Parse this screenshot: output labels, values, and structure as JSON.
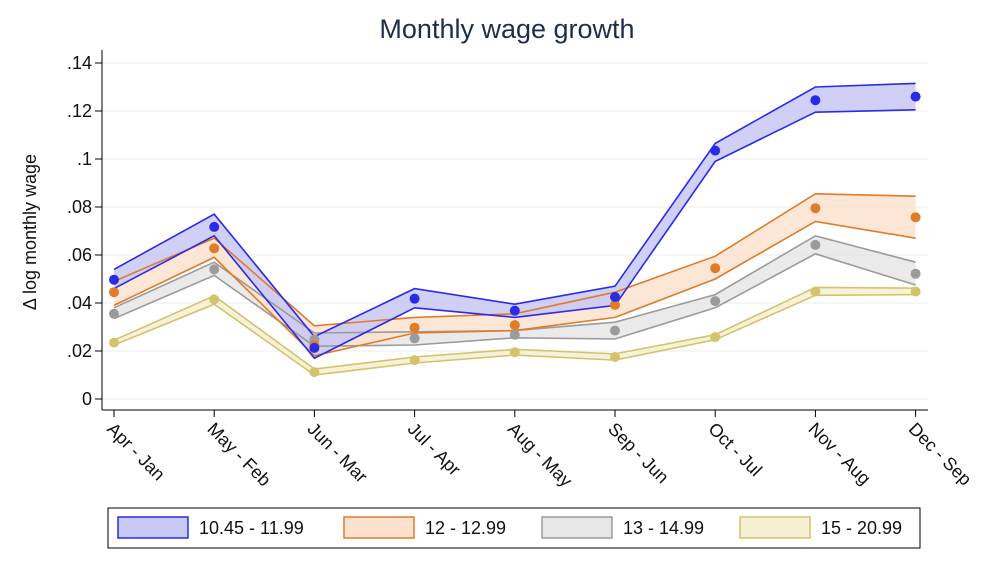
{
  "chart_data": {
    "type": "line",
    "title": "Monthly wage growth",
    "ylabel": "Δ log monthly wage",
    "xlabel": "",
    "categories": [
      "Apr - Jan",
      "May - Feb",
      "Jun - Mar",
      "Jul - Apr",
      "Aug - May",
      "Sep - Jun",
      "Oct - Jul",
      "Nov - Aug",
      "Dec - Sep"
    ],
    "ylim": [
      0,
      0.14
    ],
    "yticks": [
      0,
      0.02,
      0.04,
      0.06,
      0.08,
      0.1,
      0.12,
      0.14
    ],
    "ytick_labels": [
      "0",
      ".02",
      ".04",
      ".06",
      ".08",
      ".1",
      ".12",
      ".14"
    ],
    "grid": true,
    "legend_position": "bottom",
    "series": [
      {
        "name": "10.45 - 11.99",
        "line_color": "#2a2ae8",
        "fill_color": "#c8c8f4",
        "values": [
          0.0497,
          0.0717,
          0.0213,
          0.0418,
          0.0368,
          0.0425,
          0.1035,
          0.1245,
          0.126
        ],
        "lower": [
          0.046,
          0.068,
          0.017,
          0.038,
          0.034,
          0.039,
          0.099,
          0.1195,
          0.1205
        ],
        "upper": [
          0.054,
          0.077,
          0.026,
          0.046,
          0.0395,
          0.047,
          0.1065,
          0.13,
          0.1315
        ]
      },
      {
        "name": "12 - 12.99",
        "line_color": "#e07b2a",
        "fill_color": "#fbe2cf",
        "values": [
          0.0445,
          0.0628,
          0.0225,
          0.0297,
          0.0308,
          0.0392,
          0.0545,
          0.0795,
          0.0757
        ],
        "lower": [
          0.039,
          0.059,
          0.018,
          0.0275,
          0.0285,
          0.034,
          0.05,
          0.074,
          0.067
        ],
        "upper": [
          0.049,
          0.067,
          0.0305,
          0.034,
          0.0355,
          0.0445,
          0.0595,
          0.0855,
          0.0845
        ]
      },
      {
        "name": "13 - 14.99",
        "line_color": "#9b9b9b",
        "fill_color": "#e6e6e6",
        "values": [
          0.0355,
          0.054,
          0.0248,
          0.0253,
          0.0268,
          0.0285,
          0.0408,
          0.0642,
          0.0522
        ],
        "lower": [
          0.0335,
          0.0515,
          0.022,
          0.0225,
          0.0255,
          0.025,
          0.038,
          0.0605,
          0.0475
        ],
        "upper": [
          0.038,
          0.057,
          0.0275,
          0.028,
          0.0285,
          0.032,
          0.0435,
          0.068,
          0.057
        ]
      },
      {
        "name": "15 - 20.99",
        "line_color": "#d4c36c",
        "fill_color": "#f5f0d4",
        "values": [
          0.0235,
          0.0415,
          0.0112,
          0.0162,
          0.0195,
          0.0175,
          0.0258,
          0.0448,
          0.0448
        ],
        "lower": [
          0.0225,
          0.0395,
          0.01,
          0.015,
          0.0183,
          0.0162,
          0.0247,
          0.0432,
          0.0435
        ],
        "upper": [
          0.0245,
          0.043,
          0.0125,
          0.0175,
          0.0207,
          0.0188,
          0.0268,
          0.0465,
          0.0462
        ]
      }
    ]
  }
}
